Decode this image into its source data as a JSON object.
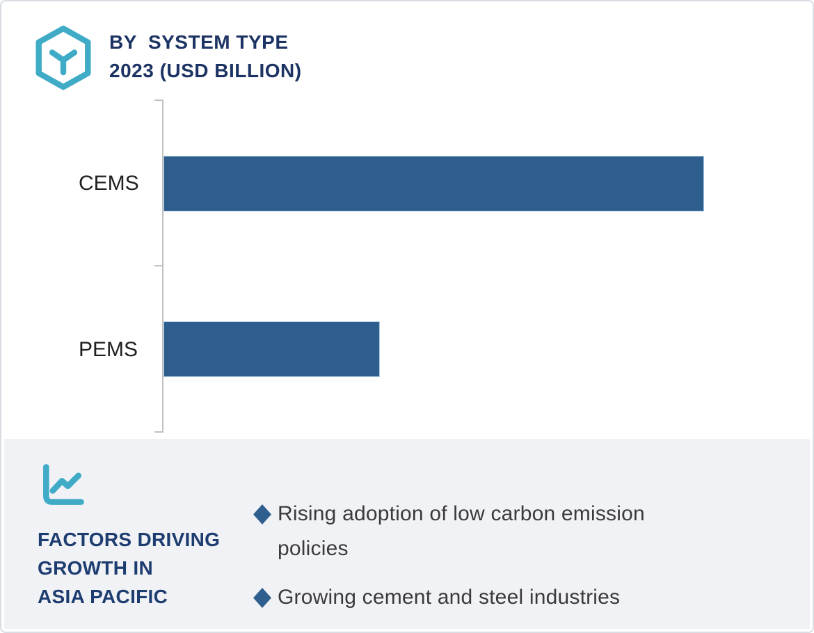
{
  "page": {
    "background": "#FFFFFF",
    "border_color": "#D8DCE3"
  },
  "header": {
    "icon": "hexagon-y-icon",
    "icon_color": "#3FABC7",
    "title_line1": "BY  SYSTEM TYPE",
    "title_line2": "2023 (USD BILLION)",
    "title_color": "#1C3363"
  },
  "chart_data": {
    "type": "bar",
    "orientation": "horizontal",
    "title": "BY SYSTEM TYPE 2023 (USD BILLION)",
    "categories": [
      "CEMS",
      "PEMS"
    ],
    "series": [
      {
        "name": "2023",
        "values_relative": [
          1.0,
          0.4
        ]
      }
    ],
    "value_axis_labels_visible": false,
    "gridlines": false,
    "legend": "none",
    "bar_color": "#2E5E8E",
    "bar_border_color": "#AECBE3",
    "axis_color": "#C2C2C2",
    "note": "No numeric axis labels shown; values are relative bar lengths (PEMS is about 40% of CEMS)."
  },
  "factors_panel": {
    "background": "#F1F2F6",
    "icon": "line-chart-icon",
    "icon_color": "#3FABC7",
    "heading_line1": "FACTORS DRIVING",
    "heading_line2": "GROWTH IN",
    "heading_line3": "ASIA PACIFIC",
    "heading_color": "#1D3C6F",
    "bullet_marker": "diamond",
    "bullet_marker_color": "#2E5F8E",
    "bullets": [
      "Rising adoption of low carbon emission policies",
      "Growing cement and steel industries"
    ]
  }
}
